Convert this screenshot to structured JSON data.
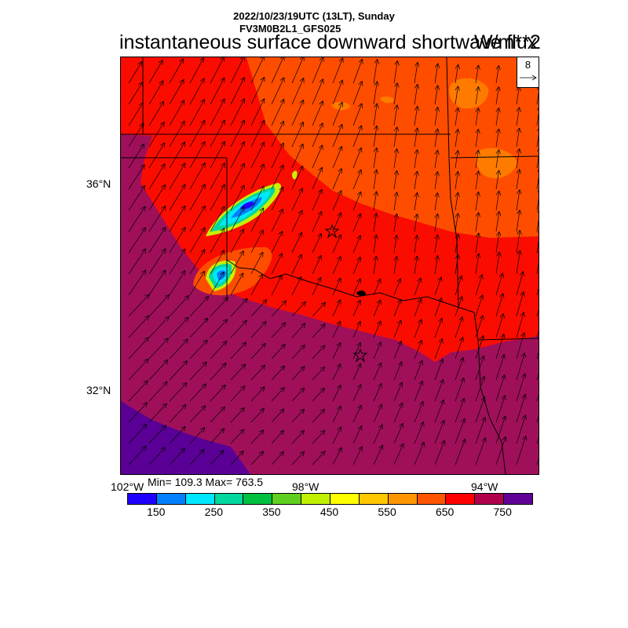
{
  "header": {
    "datetime": "2022/10/23/19UTC (13LT), Sunday",
    "model": "FV3M0B2L1_GFS025",
    "title": "instantaneous surface downward shortwave flux",
    "units": "W/m**2"
  },
  "reference_vector": {
    "label": "8"
  },
  "axes": {
    "lat_labels": [
      "36°N",
      "32°N"
    ],
    "lon_labels": [
      "102°W",
      "98°W",
      "94°W"
    ]
  },
  "stats": {
    "text": "Min= 109.3 Max= 763.5"
  },
  "colorbar": {
    "colors": [
      "#1f00ff",
      "#0080ff",
      "#00e8ff",
      "#00d8a0",
      "#00c040",
      "#60d020",
      "#c0f000",
      "#ffff00",
      "#ffc800",
      "#ff9600",
      "#ff5500",
      "#ff0000",
      "#b0004c",
      "#600096"
    ],
    "labels": [
      "150",
      "250",
      "350",
      "450",
      "550",
      "650",
      "750"
    ]
  },
  "map": {
    "field_colors": {
      "orange_high": "#ff7b00",
      "red_orange": "#ff4d00",
      "red": "#fa0d00",
      "crimson": "#a0105a",
      "purple": "#5a0096",
      "cloud_core": "#1f00ff",
      "cloud_blue": "#0080ff",
      "cloud_cyan": "#00e8ff",
      "cloud_green": "#00d8a0",
      "cloud_yellow": "#c8f000"
    },
    "markers": [
      "star",
      "star"
    ]
  }
}
